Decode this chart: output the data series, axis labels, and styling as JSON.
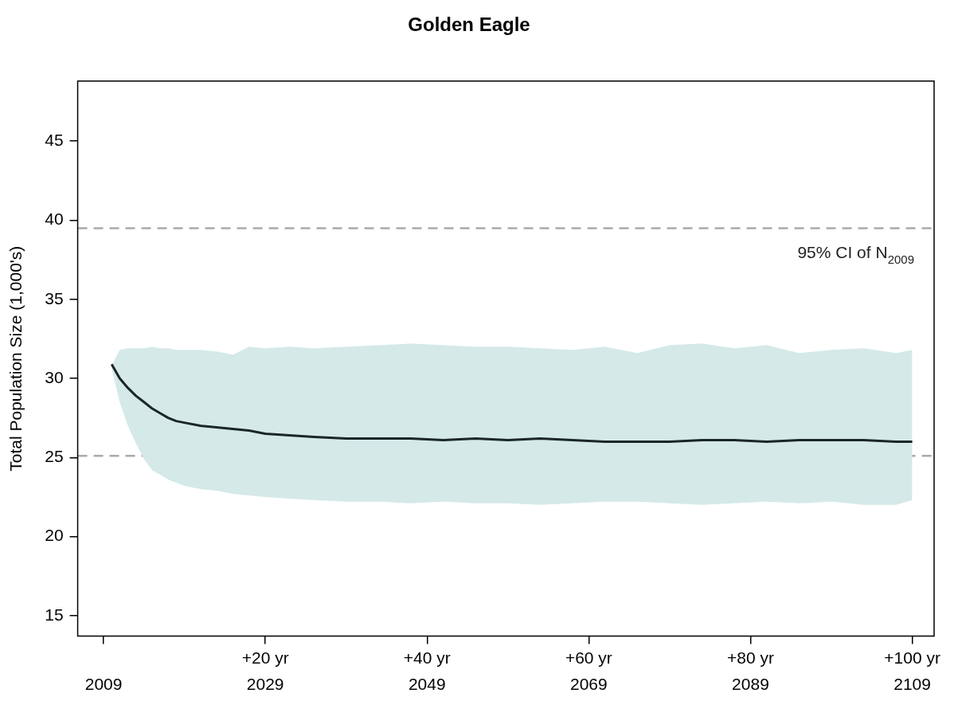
{
  "chart_data": {
    "type": "line",
    "title": "Golden Eagle",
    "ylabel": "Total Population Size (1,000's)",
    "xlim": [
      2005.8,
      2111.7
    ],
    "ylim": [
      13.7,
      48.8
    ],
    "xticks": [
      2009,
      2029,
      2049,
      2069,
      2089,
      2109
    ],
    "x2lim": [
      -3.2,
      102.7
    ],
    "x2ticks": [
      {
        "value": 0,
        "label": null
      },
      {
        "value": 20,
        "label": "+20 yr"
      },
      {
        "value": 40,
        "label": "+40 yr"
      },
      {
        "value": 60,
        "label": "+60 yr"
      },
      {
        "value": 80,
        "label": "+80 yr"
      },
      {
        "value": 100,
        "label": "+100 yr"
      }
    ],
    "yticks": [
      15,
      20,
      25,
      30,
      35,
      40,
      45
    ],
    "grid": false,
    "legend": false,
    "marker": "none",
    "line_style": "solid",
    "ref_lines": [
      {
        "axis": "y",
        "value": 39.5,
        "label": "95% CI of N$_{2009}$",
        "color": "#aaaaaa",
        "line_style": "dashed"
      },
      {
        "axis": "y",
        "value": 25.1,
        "color": "#aaaaaa",
        "line_style": "dashed"
      }
    ],
    "series": [
      {
        "color": "#1a2626",
        "x": [
          2010,
          2011,
          2012,
          2013,
          2014,
          2015,
          2016,
          2017,
          2018,
          2019,
          2021,
          2023,
          2025,
          2027,
          2029,
          2032,
          2035,
          2039,
          2043,
          2047,
          2051,
          2055,
          2059,
          2063,
          2067,
          2071,
          2075,
          2079,
          2083,
          2087,
          2091,
          2095,
          2099,
          2103,
          2107,
          2109
        ],
        "values": [
          30.9,
          30.0,
          29.4,
          28.9,
          28.5,
          28.1,
          27.8,
          27.5,
          27.3,
          27.2,
          27.0,
          26.9,
          26.8,
          26.7,
          26.5,
          26.4,
          26.3,
          26.2,
          26.2,
          26.2,
          26.1,
          26.2,
          26.1,
          26.2,
          26.1,
          26.0,
          26.0,
          26.0,
          26.1,
          26.1,
          26.0,
          26.1,
          26.1,
          26.1,
          26.0,
          26.0
        ],
        "upper": [
          30.8,
          31.8,
          31.9,
          31.9,
          31.9,
          32.0,
          31.9,
          31.9,
          31.8,
          31.8,
          31.8,
          31.7,
          31.5,
          32.0,
          31.9,
          32.0,
          31.9,
          32.0,
          32.1,
          32.2,
          32.1,
          32.0,
          32.0,
          31.9,
          31.8,
          32.0,
          31.6,
          32.1,
          32.2,
          31.9,
          32.1,
          31.6,
          31.8,
          31.9,
          31.6,
          31.8
        ],
        "lower": [
          30.6,
          28.5,
          27.0,
          25.9,
          24.9,
          24.2,
          23.9,
          23.6,
          23.4,
          23.2,
          23.0,
          22.9,
          22.7,
          22.6,
          22.5,
          22.4,
          22.3,
          22.2,
          22.2,
          22.1,
          22.2,
          22.1,
          22.1,
          22.0,
          22.1,
          22.2,
          22.2,
          22.1,
          22.0,
          22.1,
          22.2,
          22.1,
          22.2,
          22.0,
          22.0,
          22.3
        ]
      }
    ]
  }
}
